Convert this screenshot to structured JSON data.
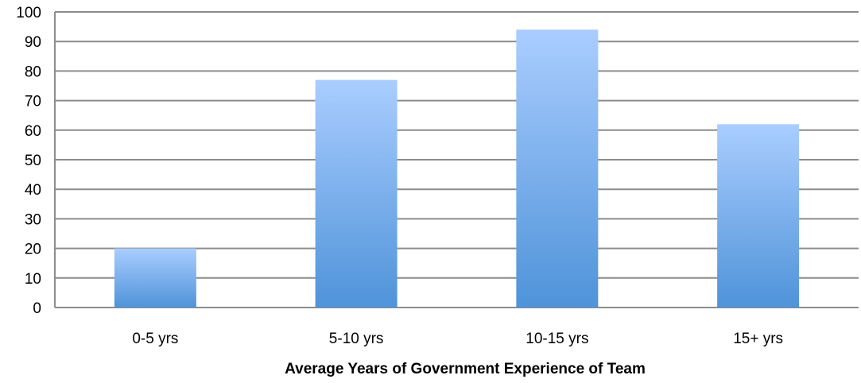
{
  "chart_data": {
    "type": "bar",
    "title": "",
    "xlabel": "Average Years of Government Experience of Team",
    "ylabel": "",
    "categories": [
      "0-5 yrs",
      "5-10 yrs",
      "10-15 yrs",
      "15+ yrs"
    ],
    "values": [
      20,
      77,
      94,
      62
    ],
    "ylim": [
      0,
      100
    ],
    "yticks": [
      "0",
      "10",
      "20",
      "30",
      "40",
      "50",
      "60",
      "70",
      "80",
      "90",
      "100"
    ],
    "grid": true,
    "legend": "none",
    "colors": {
      "bar_top": "#aacdff",
      "bar_bottom": "#4f93d9",
      "grid": "#8c8c8c"
    }
  }
}
